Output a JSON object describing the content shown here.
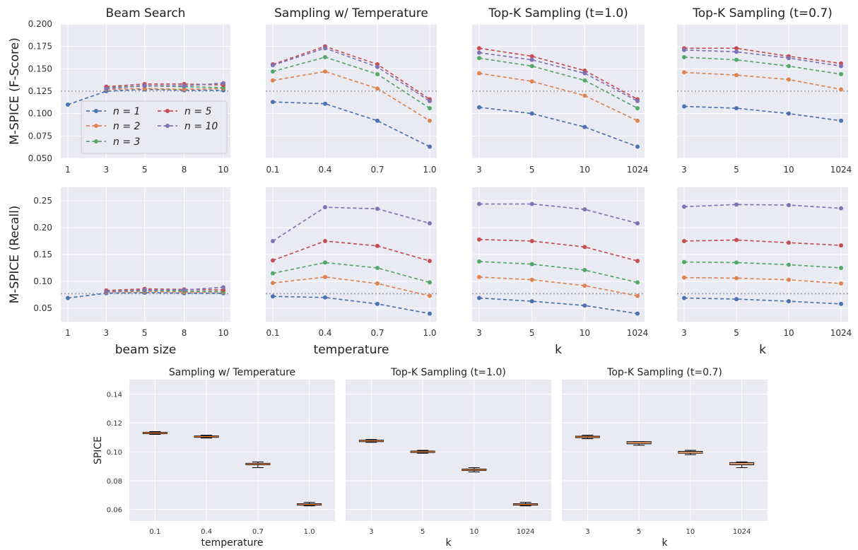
{
  "figure": {
    "row_ylabels": [
      "M-SPICE (F-Score)",
      "M-SPICE (Recall)"
    ],
    "row_ticks": [
      [
        "0.050",
        "0.075",
        "0.100",
        "0.125",
        "0.150",
        "0.175",
        "0.200"
      ],
      [
        "0.05",
        "0.10",
        "0.15",
        "0.20",
        "0.25"
      ]
    ],
    "bottom_ylabel": "SPICE",
    "bottom_ticks": [
      "0.06",
      "0.08",
      "0.10",
      "0.12",
      "0.14"
    ]
  },
  "legend": {
    "entries": [
      "n = 1",
      "n = 2",
      "n = 3",
      "n = 5",
      "n = 10"
    ],
    "colors": [
      "#4c72b0",
      "#dd8452",
      "#55a868",
      "#c44e52",
      "#8172b3"
    ]
  },
  "chart_data": [
    {
      "type": "line",
      "title": "Beam Search",
      "xlabel": "",
      "ylabel": "M-SPICE (F-Score)",
      "ylim": [
        0.05,
        0.2
      ],
      "grid": true,
      "legend": "center-left",
      "x": [
        "1",
        "3",
        "5",
        "8",
        "10"
      ],
      "series": [
        {
          "name": "n = 1",
          "values": [
            0.11,
            0.125,
            0.127,
            0.126,
            0.126
          ]
        },
        {
          "name": "n = 2",
          "values": [
            null,
            0.127,
            0.128,
            0.127,
            0.128
          ]
        },
        {
          "name": "n = 3",
          "values": [
            null,
            0.129,
            0.131,
            0.13,
            0.129
          ]
        },
        {
          "name": "n = 5",
          "values": [
            null,
            0.13,
            0.133,
            0.133,
            0.132
          ]
        },
        {
          "name": "n = 10",
          "values": [
            null,
            0.128,
            0.131,
            0.131,
            0.134
          ]
        }
      ],
      "reference_line": 0.125
    },
    {
      "type": "line",
      "title": "Sampling w/ Temperature",
      "xlabel": "",
      "ylabel": "",
      "ylim": [
        0.05,
        0.2
      ],
      "grid": true,
      "x": [
        "0.1",
        "0.4",
        "0.7",
        "1.0"
      ],
      "series": [
        {
          "name": "n = 1",
          "values": [
            0.113,
            0.111,
            0.092,
            0.063
          ]
        },
        {
          "name": "n = 2",
          "values": [
            0.137,
            0.147,
            0.128,
            0.092
          ]
        },
        {
          "name": "n = 3",
          "values": [
            0.147,
            0.163,
            0.144,
            0.106
          ]
        },
        {
          "name": "n = 5",
          "values": [
            0.155,
            0.175,
            0.155,
            0.116
          ]
        },
        {
          "name": "n = 10",
          "values": [
            0.154,
            0.173,
            0.152,
            0.114
          ]
        }
      ],
      "reference_line": 0.125
    },
    {
      "type": "line",
      "title": "Top-K Sampling (t=1.0)",
      "xlabel": "",
      "ylabel": "",
      "ylim": [
        0.05,
        0.2
      ],
      "grid": true,
      "x": [
        "3",
        "5",
        "10",
        "1024"
      ],
      "series": [
        {
          "name": "n = 1",
          "values": [
            0.107,
            0.1,
            0.085,
            0.063
          ]
        },
        {
          "name": "n = 2",
          "values": [
            0.145,
            0.136,
            0.12,
            0.092
          ]
        },
        {
          "name": "n = 3",
          "values": [
            0.162,
            0.153,
            0.137,
            0.106
          ]
        },
        {
          "name": "n = 5",
          "values": [
            0.173,
            0.164,
            0.148,
            0.116
          ]
        },
        {
          "name": "n = 10",
          "values": [
            0.168,
            0.16,
            0.145,
            0.114
          ]
        }
      ],
      "reference_line": 0.125
    },
    {
      "type": "line",
      "title": "Top-K Sampling (t=0.7)",
      "xlabel": "",
      "ylabel": "",
      "ylim": [
        0.05,
        0.2
      ],
      "grid": true,
      "x": [
        "3",
        "5",
        "10",
        "1024"
      ],
      "series": [
        {
          "name": "n = 1",
          "values": [
            0.108,
            0.106,
            0.1,
            0.092
          ]
        },
        {
          "name": "n = 2",
          "values": [
            0.146,
            0.143,
            0.138,
            0.127
          ]
        },
        {
          "name": "n = 3",
          "values": [
            0.163,
            0.16,
            0.153,
            0.144
          ]
        },
        {
          "name": "n = 5",
          "values": [
            0.173,
            0.173,
            0.164,
            0.156
          ]
        },
        {
          "name": "n = 10",
          "values": [
            0.171,
            0.169,
            0.162,
            0.153
          ]
        }
      ],
      "reference_line": 0.125
    },
    {
      "type": "line",
      "title": "",
      "xlabel": "beam size",
      "ylabel": "M-SPICE (Recall)",
      "ylim": [
        0.025,
        0.275
      ],
      "grid": true,
      "x": [
        "1",
        "3",
        "5",
        "8",
        "10"
      ],
      "series": [
        {
          "name": "n = 1",
          "values": [
            0.069,
            0.078,
            0.079,
            0.078,
            0.078
          ]
        },
        {
          "name": "n = 2",
          "values": [
            null,
            0.08,
            0.081,
            0.08,
            0.08
          ]
        },
        {
          "name": "n = 3",
          "values": [
            null,
            0.082,
            0.083,
            0.082,
            0.081
          ]
        },
        {
          "name": "n = 5",
          "values": [
            null,
            0.083,
            0.086,
            0.085,
            0.084
          ]
        },
        {
          "name": "n = 10",
          "values": [
            null,
            0.081,
            0.084,
            0.084,
            0.089
          ]
        }
      ],
      "reference_line": 0.077
    },
    {
      "type": "line",
      "title": "",
      "xlabel": "temperature",
      "ylabel": "",
      "ylim": [
        0.025,
        0.275
      ],
      "grid": true,
      "x": [
        "0.1",
        "0.4",
        "0.7",
        "1.0"
      ],
      "series": [
        {
          "name": "n = 1",
          "values": [
            0.072,
            0.07,
            0.058,
            0.04
          ]
        },
        {
          "name": "n = 2",
          "values": [
            0.097,
            0.108,
            0.096,
            0.073
          ]
        },
        {
          "name": "n = 3",
          "values": [
            0.115,
            0.135,
            0.125,
            0.098
          ]
        },
        {
          "name": "n = 5",
          "values": [
            0.139,
            0.175,
            0.166,
            0.138
          ]
        },
        {
          "name": "n = 10",
          "values": [
            0.175,
            0.238,
            0.235,
            0.208
          ]
        }
      ],
      "reference_line": 0.077
    },
    {
      "type": "line",
      "title": "",
      "xlabel": "k",
      "ylabel": "",
      "ylim": [
        0.025,
        0.275
      ],
      "grid": true,
      "x": [
        "3",
        "5",
        "10",
        "1024"
      ],
      "series": [
        {
          "name": "n = 1",
          "values": [
            0.069,
            0.063,
            0.055,
            0.04
          ]
        },
        {
          "name": "n = 2",
          "values": [
            0.108,
            0.103,
            0.092,
            0.073
          ]
        },
        {
          "name": "n = 3",
          "values": [
            0.137,
            0.132,
            0.121,
            0.098
          ]
        },
        {
          "name": "n = 5",
          "values": [
            0.178,
            0.175,
            0.164,
            0.138
          ]
        },
        {
          "name": "n = 10",
          "values": [
            0.244,
            0.244,
            0.234,
            0.208
          ]
        }
      ],
      "reference_line": 0.077
    },
    {
      "type": "line",
      "title": "",
      "xlabel": "k",
      "ylabel": "",
      "ylim": [
        0.025,
        0.275
      ],
      "grid": true,
      "x": [
        "3",
        "5",
        "10",
        "1024"
      ],
      "series": [
        {
          "name": "n = 1",
          "values": [
            0.069,
            0.067,
            0.063,
            0.058
          ]
        },
        {
          "name": "n = 2",
          "values": [
            0.107,
            0.106,
            0.103,
            0.096
          ]
        },
        {
          "name": "n = 3",
          "values": [
            0.136,
            0.135,
            0.131,
            0.125
          ]
        },
        {
          "name": "n = 5",
          "values": [
            0.175,
            0.177,
            0.172,
            0.167
          ]
        },
        {
          "name": "n = 10",
          "values": [
            0.239,
            0.243,
            0.242,
            0.236
          ]
        }
      ],
      "reference_line": 0.077
    },
    {
      "type": "box",
      "title": "Sampling w/ Temperature",
      "xlabel": "temperature",
      "ylabel": "SPICE",
      "ylim": [
        0.052,
        0.15
      ],
      "grid": true,
      "categories": [
        "0.1",
        "0.4",
        "0.7",
        "1.0"
      ],
      "boxes": [
        {
          "min": 0.112,
          "q1": 0.1125,
          "median": 0.113,
          "q3": 0.1135,
          "max": 0.114
        },
        {
          "min": 0.1095,
          "q1": 0.11,
          "median": 0.1105,
          "q3": 0.111,
          "max": 0.1115
        },
        {
          "min": 0.089,
          "q1": 0.091,
          "median": 0.0915,
          "q3": 0.092,
          "max": 0.093
        },
        {
          "min": 0.0625,
          "q1": 0.063,
          "median": 0.0635,
          "q3": 0.064,
          "max": 0.065
        }
      ]
    },
    {
      "type": "box",
      "title": "Top-K Sampling (t=1.0)",
      "xlabel": "k",
      "ylabel": "",
      "ylim": [
        0.052,
        0.15
      ],
      "grid": true,
      "categories": [
        "3",
        "5",
        "10",
        "1024"
      ],
      "boxes": [
        {
          "min": 0.1065,
          "q1": 0.107,
          "median": 0.1075,
          "q3": 0.108,
          "max": 0.1085
        },
        {
          "min": 0.099,
          "q1": 0.0995,
          "median": 0.1,
          "q3": 0.1005,
          "max": 0.101
        },
        {
          "min": 0.086,
          "q1": 0.087,
          "median": 0.0875,
          "q3": 0.088,
          "max": 0.089
        },
        {
          "min": 0.0625,
          "q1": 0.063,
          "median": 0.0635,
          "q3": 0.064,
          "max": 0.065
        }
      ]
    },
    {
      "type": "box",
      "title": "Top-K Sampling (t=0.7)",
      "xlabel": "k",
      "ylabel": "",
      "ylim": [
        0.052,
        0.15
      ],
      "grid": true,
      "categories": [
        "3",
        "5",
        "10",
        "1024"
      ],
      "boxes": [
        {
          "min": 0.109,
          "q1": 0.1098,
          "median": 0.1103,
          "q3": 0.1108,
          "max": 0.1115
        },
        {
          "min": 0.1045,
          "q1": 0.1055,
          "median": 0.1063,
          "q3": 0.107,
          "max": 0.107
        },
        {
          "min": 0.098,
          "q1": 0.099,
          "median": 0.0995,
          "q3": 0.1003,
          "max": 0.101
        },
        {
          "min": 0.089,
          "q1": 0.091,
          "median": 0.0917,
          "q3": 0.0925,
          "max": 0.093
        }
      ]
    }
  ]
}
